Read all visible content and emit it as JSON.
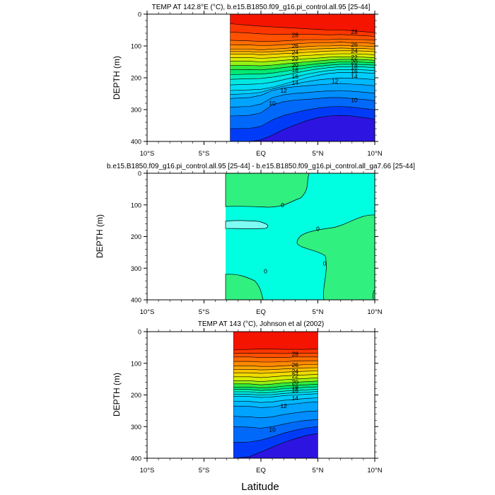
{
  "figure": {
    "x_axis_label": "Latitude",
    "panels": [
      {
        "id": "model",
        "title": "TEMP AT 142.8°E (°C), b.e15.B1850.f09_g16.pi_control.all.95 [25-44]",
        "ylabel": "DEPTH (m)"
      },
      {
        "id": "difference",
        "title": "b.e15.B1850.f09_g16.pi_control.all.95 [25-44] - b.e15.B1850.f09_g16.pi_control.all_ga7.66 [25-44]",
        "ylabel": "DEPTH (m)"
      },
      {
        "id": "observations",
        "title": "TEMP AT 143 (°C), Johnson et al (2002)",
        "ylabel": "DEPTH (m)"
      }
    ]
  },
  "chart_data": [
    {
      "type": "heatmap",
      "subtype": "filled-contour",
      "title": "TEMP AT 142.8°E (°C), b.e15.B1850.f09_g16.pi_control.all.95 [25-44]",
      "xlabel": "",
      "ylabel": "DEPTH (m)",
      "x_ticks": [
        "10°S",
        "5°S",
        "EQ",
        "5°N",
        "10°N"
      ],
      "x_tick_values": [
        -10,
        -5,
        0,
        5,
        10
      ],
      "y_ticks": [
        0,
        100,
        200,
        300,
        400
      ],
      "xlim": [
        -10,
        10
      ],
      "ylim": [
        0,
        400
      ],
      "y_inverted": true,
      "data_extent_lat": [
        -2.7,
        10
      ],
      "contour_interval": 1,
      "field": {
        "lat": [
          -2.7,
          -1,
          0,
          1,
          2,
          3,
          4,
          5,
          6,
          7,
          8,
          9,
          10
        ],
        "depth_of_isotherm": {
          "28": [
            30,
            35,
            38,
            40,
            42,
            44,
            46,
            48,
            50,
            50,
            52,
            55,
            58
          ],
          "26": [
            82,
            84,
            86,
            86,
            84,
            82,
            80,
            80,
            80,
            78,
            80,
            80,
            82
          ],
          "24": [
            110,
            110,
            112,
            110,
            108,
            105,
            102,
            100,
            100,
            98,
            100,
            100,
            102
          ],
          "22": [
            125,
            125,
            128,
            126,
            124,
            122,
            120,
            118,
            116,
            115,
            115,
            116,
            118
          ],
          "20": [
            148,
            148,
            150,
            148,
            145,
            142,
            140,
            138,
            135,
            134,
            134,
            135,
            137
          ],
          "18": [
            175,
            174,
            175,
            172,
            168,
            164,
            160,
            156,
            153,
            150,
            150,
            151,
            153
          ],
          "16": [
            205,
            203,
            202,
            198,
            192,
            185,
            178,
            172,
            168,
            165,
            165,
            166,
            168
          ],
          "14": [
            240,
            238,
            236,
            230,
            220,
            210,
            200,
            192,
            186,
            183,
            183,
            184,
            186
          ],
          "12": [
            265,
            262,
            255,
            240,
            232,
            228,
            225,
            222,
            220,
            218,
            220,
            222,
            225
          ],
          "10": [
            320,
            318,
            310,
            285,
            275,
            270,
            268,
            265,
            262,
            262,
            265,
            268,
            272
          ],
          "8": [
            400,
            400,
            395,
            380,
            362,
            348,
            335,
            325,
            320,
            318,
            320,
            325,
            330
          ]
        }
      },
      "contour_labels": [
        {
          "value": 28,
          "lat": 3.0,
          "depth": 65
        },
        {
          "value": 26,
          "lat": 3.0,
          "depth": 100
        },
        {
          "value": 24,
          "lat": 3.0,
          "depth": 120
        },
        {
          "value": 22,
          "lat": 3.0,
          "depth": 140
        },
        {
          "value": 20,
          "lat": 3.0,
          "depth": 160
        },
        {
          "value": 18,
          "lat": 3.0,
          "depth": 175
        },
        {
          "value": 16,
          "lat": 3.0,
          "depth": 195
        },
        {
          "value": 14,
          "lat": 3.0,
          "depth": 215
        },
        {
          "value": 12,
          "lat": 2.0,
          "depth": 240
        },
        {
          "value": 10,
          "lat": 1.0,
          "depth": 280
        },
        {
          "value": 28,
          "lat": 8.2,
          "depth": 55
        },
        {
          "value": 26,
          "lat": 8.2,
          "depth": 95
        },
        {
          "value": 24,
          "lat": 8.2,
          "depth": 115
        },
        {
          "value": 22,
          "lat": 8.2,
          "depth": 135
        },
        {
          "value": 20,
          "lat": 8.2,
          "depth": 150
        },
        {
          "value": 18,
          "lat": 8.2,
          "depth": 165
        },
        {
          "value": 16,
          "lat": 8.2,
          "depth": 180
        },
        {
          "value": 14,
          "lat": 8.2,
          "depth": 195
        },
        {
          "value": 12,
          "lat": 6.5,
          "depth": 210
        },
        {
          "value": 10,
          "lat": 8.2,
          "depth": 270
        }
      ]
    },
    {
      "type": "heatmap",
      "subtype": "filled-contour",
      "title": "b.e15.B1850.f09_g16.pi_control.all.95 [25-44] - b.e15.B1850.f09_g16.pi_control.all_ga7.66 [25-44]",
      "xlabel": "",
      "ylabel": "DEPTH (m)",
      "x_ticks": [
        "10°S",
        "5°S",
        "EQ",
        "5°N",
        "10°N"
      ],
      "x_tick_values": [
        -10,
        -5,
        0,
        5,
        10
      ],
      "y_ticks": [
        0,
        100,
        200,
        300,
        400
      ],
      "xlim": [
        -10,
        10
      ],
      "ylim": [
        0,
        400
      ],
      "y_inverted": true,
      "data_extent_lat": [
        -2.7,
        10
      ],
      "contour_labels": [
        {
          "value": 0,
          "lat": 1.9,
          "depth": 100
        },
        {
          "value": 0,
          "lat": 5.0,
          "depth": 175
        },
        {
          "value": 0,
          "lat": 5.6,
          "depth": 285
        },
        {
          "value": 0,
          "lat": 0.4,
          "depth": 310
        }
      ]
    },
    {
      "type": "heatmap",
      "subtype": "filled-contour",
      "title": "TEMP AT 143 (°C), Johnson et al (2002)",
      "xlabel": "Latitude",
      "ylabel": "DEPTH (m)",
      "x_ticks": [
        "10°S",
        "5°S",
        "EQ",
        "5°N",
        "10°N"
      ],
      "x_tick_values": [
        -10,
        -5,
        0,
        5,
        10
      ],
      "y_ticks": [
        0,
        100,
        200,
        300,
        400
      ],
      "xlim": [
        -10,
        10
      ],
      "ylim": [
        0,
        400
      ],
      "y_inverted": true,
      "data_extent_lat": [
        -2.4,
        5
      ],
      "contour_interval": 1,
      "field": {
        "lat": [
          -2.4,
          -1,
          0,
          1,
          2,
          3,
          4,
          5
        ],
        "depth_of_isotherm": {
          "28": [
            58,
            56,
            55,
            55,
            56,
            56,
            56,
            55
          ],
          "26": [
            80,
            80,
            82,
            82,
            82,
            80,
            80,
            80
          ],
          "24": [
            108,
            108,
            110,
            110,
            108,
            106,
            104,
            104
          ],
          "22": [
            130,
            130,
            132,
            130,
            128,
            126,
            125,
            124
          ],
          "20": [
            155,
            155,
            158,
            155,
            152,
            150,
            148,
            146
          ],
          "18": [
            175,
            175,
            178,
            176,
            172,
            170,
            168,
            166
          ],
          "16": [
            190,
            190,
            194,
            192,
            188,
            186,
            184,
            182
          ],
          "14": [
            205,
            205,
            208,
            206,
            202,
            200,
            198,
            196
          ],
          "12": [
            235,
            236,
            240,
            238,
            232,
            228,
            224,
            222
          ],
          "10": [
            300,
            302,
            305,
            300,
            292,
            285,
            280,
            278
          ],
          "8": [
            400,
            395,
            380,
            365,
            350,
            338,
            328,
            322
          ]
        }
      },
      "contour_labels": [
        {
          "value": 28,
          "lat": 3.0,
          "depth": 70
        },
        {
          "value": 26,
          "lat": 3.0,
          "depth": 105
        },
        {
          "value": 24,
          "lat": 3.0,
          "depth": 125
        },
        {
          "value": 22,
          "lat": 3.0,
          "depth": 140
        },
        {
          "value": 20,
          "lat": 3.0,
          "depth": 160
        },
        {
          "value": 18,
          "lat": 3.0,
          "depth": 175
        },
        {
          "value": 16,
          "lat": 3.0,
          "depth": 185
        },
        {
          "value": 14,
          "lat": 3.0,
          "depth": 210
        },
        {
          "value": 12,
          "lat": 2.0,
          "depth": 235
        },
        {
          "value": 10,
          "lat": 1.0,
          "depth": 310
        }
      ]
    }
  ]
}
